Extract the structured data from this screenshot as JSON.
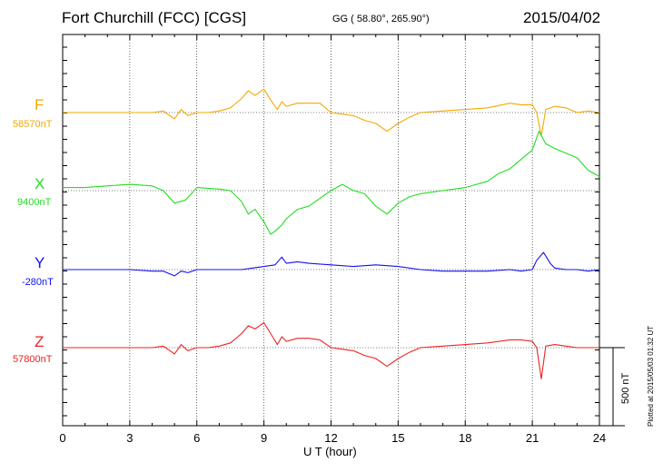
{
  "header": {
    "station": "Fort Churchill (FCC)  [CGS]",
    "coords": "GG ( 58.80°, 265.90°)",
    "date": "2015/04/02"
  },
  "footer": {
    "plotted": "Plotted at 2015/05/03 01:32 UT"
  },
  "scale_bar": {
    "label": "500 nT"
  },
  "chart_data": {
    "type": "line",
    "title": "Fort Churchill (FCC)  [CGS]",
    "xlabel": "U T (hour)",
    "xlim": [
      0,
      24
    ],
    "xticks": [
      "0",
      "3",
      "6",
      "9",
      "12",
      "15",
      "18",
      "21",
      "24"
    ],
    "grid": true,
    "scale_nT": 500,
    "series": [
      {
        "name": "F",
        "baseline": "58570nT",
        "color": "#f5a800",
        "x": [
          0,
          1,
          2,
          3,
          4,
          4.5,
          5,
          5.3,
          5.6,
          6,
          6.5,
          7,
          7.5,
          8,
          8.3,
          8.6,
          9,
          9.3,
          9.6,
          9.8,
          10,
          10.5,
          11,
          11.5,
          12,
          12.5,
          13,
          13.5,
          14,
          14.5,
          15,
          15.5,
          16,
          17,
          18,
          19,
          20,
          20.5,
          21,
          21.2,
          21.4,
          21.6,
          22,
          22.5,
          23,
          23.5,
          24
        ],
        "y": [
          0,
          0,
          0,
          0,
          0,
          10,
          -40,
          20,
          -20,
          0,
          0,
          10,
          30,
          90,
          140,
          110,
          150,
          80,
          20,
          70,
          40,
          60,
          60,
          60,
          0,
          -10,
          -20,
          -50,
          -70,
          -120,
          -70,
          -30,
          0,
          10,
          20,
          30,
          60,
          50,
          50,
          0,
          -150,
          20,
          40,
          30,
          0,
          10,
          0
        ]
      },
      {
        "name": "X",
        "baseline": "9400nT",
        "color": "#22dd22",
        "x": [
          0,
          1,
          2,
          3,
          4,
          4.5,
          5,
          5.5,
          6,
          7,
          7.5,
          8,
          8.3,
          8.6,
          9,
          9.3,
          9.5,
          9.8,
          10,
          10.5,
          11,
          11.5,
          12,
          12.5,
          13,
          13.5,
          14,
          14.5,
          15,
          15.5,
          16,
          17,
          18,
          19,
          19.5,
          20,
          20.5,
          21,
          21.3,
          21.6,
          22,
          22.5,
          23,
          23.5,
          24
        ],
        "y": [
          20,
          20,
          30,
          40,
          30,
          0,
          -80,
          -60,
          20,
          10,
          0,
          -70,
          -150,
          -120,
          -200,
          -280,
          -260,
          -220,
          -180,
          -120,
          -100,
          -50,
          0,
          40,
          0,
          -20,
          -100,
          -150,
          -80,
          -40,
          -20,
          0,
          20,
          60,
          110,
          140,
          200,
          260,
          380,
          300,
          270,
          240,
          210,
          130,
          90
        ]
      },
      {
        "name": "Y",
        "baseline": "-280nT",
        "color": "#1111ee",
        "x": [
          0,
          1,
          2,
          3,
          4,
          4.5,
          5,
          5.3,
          5.6,
          6,
          7,
          8,
          8.5,
          9,
          9.5,
          9.8,
          10,
          10.5,
          11,
          12,
          13,
          14,
          15,
          16,
          17,
          18,
          19,
          20,
          20.5,
          21,
          21.2,
          21.5,
          21.8,
          22,
          22.5,
          23,
          23.5,
          24
        ],
        "y": [
          0,
          0,
          0,
          0,
          -10,
          -10,
          -40,
          -10,
          -20,
          0,
          0,
          0,
          10,
          20,
          30,
          80,
          40,
          50,
          40,
          30,
          20,
          30,
          20,
          0,
          -10,
          -10,
          -10,
          0,
          -10,
          0,
          60,
          110,
          40,
          10,
          0,
          0,
          -10,
          0
        ]
      },
      {
        "name": "Z",
        "baseline": "57800nT",
        "color": "#ee2222",
        "x": [
          0,
          1,
          2,
          3,
          4,
          4.5,
          5,
          5.3,
          5.6,
          6,
          6.5,
          7,
          7.5,
          8,
          8.3,
          8.6,
          9,
          9.3,
          9.6,
          9.8,
          10,
          10.5,
          11,
          11.5,
          12,
          12.5,
          13,
          13.5,
          14,
          14.5,
          15,
          15.5,
          16,
          17,
          18,
          19,
          20,
          20.5,
          21,
          21.2,
          21.4,
          21.6,
          22,
          22.5,
          23,
          23.5,
          24
        ],
        "y": [
          0,
          0,
          0,
          0,
          0,
          10,
          -40,
          20,
          -20,
          0,
          0,
          10,
          30,
          90,
          140,
          120,
          160,
          90,
          20,
          70,
          40,
          60,
          60,
          50,
          0,
          -10,
          -20,
          -50,
          -70,
          -120,
          -70,
          -30,
          0,
          10,
          20,
          30,
          50,
          50,
          40,
          0,
          -200,
          10,
          20,
          10,
          0,
          0,
          0
        ]
      }
    ]
  }
}
